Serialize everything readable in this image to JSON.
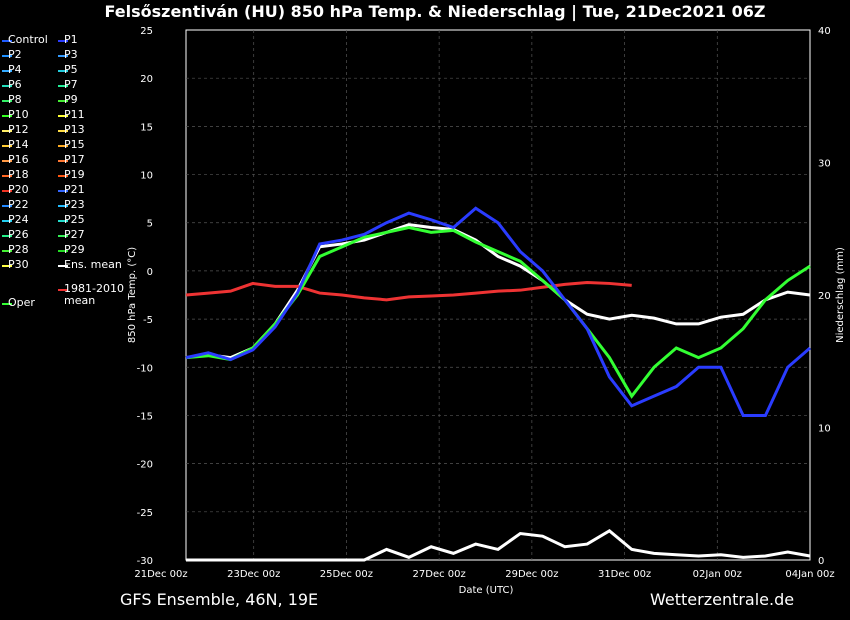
{
  "chart_data": {
    "type": "line",
    "title": "Felsőszentiván  (HU)  850 hPa Temp. & Niederschlag | Tue, 21Dec2021 06Z",
    "xlabel": "Date (UTC)",
    "ylabel": "850 hPa Temp. (°C)",
    "y2label": "Niederschlag (mm)",
    "ylim": [
      -30,
      25
    ],
    "y2lim": [
      0,
      40
    ],
    "yticks": [
      "25",
      "20",
      "15",
      "10",
      "5",
      "0",
      "-5",
      "-10",
      "-15",
      "-20",
      "-25",
      "-30"
    ],
    "y2ticks": [
      "40",
      "30",
      "20",
      "10",
      "0"
    ],
    "xlim_days": [
      "21Dec 00z",
      "04Jan 00z"
    ],
    "xticks": [
      "21Dec 00z",
      "23Dec 00z",
      "25Dec 00z",
      "27Dec 00z",
      "29Dec 00z",
      "31Dec 00z",
      "02Jan 00z",
      "04Jan 00z"
    ],
    "grid": true,
    "legend_position": "left",
    "legend": [
      {
        "label": "Control",
        "color": "#1f5cff"
      },
      {
        "label": "P1",
        "color": "#2a3cff"
      },
      {
        "label": "P2",
        "color": "#1e90ff"
      },
      {
        "label": "P3",
        "color": "#3399ff"
      },
      {
        "label": "P4",
        "color": "#33aaff"
      },
      {
        "label": "P5",
        "color": "#22ccdd"
      },
      {
        "label": "P6",
        "color": "#22ddbb"
      },
      {
        "label": "P7",
        "color": "#22ee99"
      },
      {
        "label": "P8",
        "color": "#33ee66"
      },
      {
        "label": "P9",
        "color": "#44ee33"
      },
      {
        "label": "P10",
        "color": "#33ff22"
      },
      {
        "label": "P11",
        "color": "#ffff33"
      },
      {
        "label": "P12",
        "color": "#ffee66"
      },
      {
        "label": "P13",
        "color": "#ffdd44"
      },
      {
        "label": "P14",
        "color": "#ffcc33"
      },
      {
        "label": "P15",
        "color": "#ffaa22"
      },
      {
        "label": "P16",
        "color": "#ff9944"
      },
      {
        "label": "P17",
        "color": "#ff7733"
      },
      {
        "label": "P18",
        "color": "#ff6622"
      },
      {
        "label": "P19",
        "color": "#ff5511"
      },
      {
        "label": "P20",
        "color": "#ee3322"
      },
      {
        "label": "P21",
        "color": "#3366ff"
      },
      {
        "label": "P22",
        "color": "#2288ff"
      },
      {
        "label": "P23",
        "color": "#22bbff"
      },
      {
        "label": "P24",
        "color": "#22ccee"
      },
      {
        "label": "P25",
        "color": "#22ddcc"
      },
      {
        "label": "P26",
        "color": "#22ee88"
      },
      {
        "label": "P27",
        "color": "#33ee55"
      },
      {
        "label": "P28",
        "color": "#44ee33"
      },
      {
        "label": "P29",
        "color": "#22dd22"
      },
      {
        "label": "P30",
        "color": "#ffff44"
      },
      {
        "label": "Ens. mean",
        "color": "#ffffff"
      },
      {
        "label": "1981-2010\nmean",
        "color": "#ee3333"
      },
      {
        "label": "Oper",
        "color": "#33ff33"
      }
    ],
    "series": [
      {
        "name": "Ens. mean",
        "color": "#ffffff",
        "x": [
          0,
          0.5,
          1,
          1.5,
          2,
          2.5,
          3,
          3.5,
          4,
          4.5,
          5,
          5.5,
          6,
          6.5,
          7,
          7.5,
          8,
          8.5,
          9,
          9.5,
          10,
          10.5,
          11,
          11.5,
          12,
          12.5,
          13,
          13.5,
          14
        ],
        "y": [
          -9,
          -8.7,
          -9,
          -8,
          -5.5,
          -2,
          2.5,
          2.8,
          3.2,
          4,
          4.8,
          4.5,
          4.3,
          3.2,
          1.5,
          0.5,
          -1,
          -3,
          -4.5,
          -5,
          -4.6,
          -4.9,
          -5.5,
          -5.5,
          -4.8,
          -4.5,
          -3,
          -2.2,
          -2.5
        ]
      },
      {
        "name": "1981-2010\nmean",
        "color": "#ee3333",
        "x": [
          0,
          0.5,
          1,
          1.5,
          2,
          2.5,
          3,
          3.5,
          4,
          4.5,
          5,
          5.5,
          6,
          6.5,
          7,
          7.5,
          8,
          8.5,
          9,
          9.5,
          10
        ],
        "y": [
          -2.5,
          -2.3,
          -2.1,
          -1.3,
          -1.6,
          -1.6,
          -2.3,
          -2.5,
          -2.8,
          -3,
          -2.7,
          -2.6,
          -2.5,
          -2.3,
          -2.1,
          -2,
          -1.7,
          -1.4,
          -1.2,
          -1.3,
          -1.5
        ]
      },
      {
        "name": "Oper",
        "color": "#33ff33",
        "x": [
          0,
          0.5,
          1,
          1.5,
          2,
          2.5,
          3,
          3.5,
          4,
          4.5,
          5,
          5.5,
          6,
          6.5,
          7,
          7.5,
          8,
          8.5,
          9,
          9.5,
          10,
          10.5,
          11,
          11.5,
          12,
          12.5,
          13,
          13.5,
          14
        ],
        "y": [
          -9,
          -8.8,
          -9.2,
          -8,
          -5.5,
          -2.5,
          1.5,
          2.5,
          3.5,
          4,
          4.5,
          4,
          4.2,
          3,
          2,
          1,
          -1,
          -3,
          -6,
          -9,
          -13,
          -10,
          -8,
          -9,
          -8,
          -6,
          -3,
          -1,
          0.5
        ]
      },
      {
        "name": "P1",
        "color": "#2a3cff",
        "x": [
          0,
          0.5,
          1,
          1.5,
          2,
          2.5,
          3,
          3.5,
          4,
          4.5,
          5,
          5.5,
          6,
          6.5,
          7,
          7.5,
          8,
          8.5,
          9,
          9.5,
          10,
          10.5,
          11,
          11.5,
          12,
          12.5,
          13,
          13.5,
          14
        ],
        "y": [
          -9,
          -8.5,
          -9.2,
          -8.2,
          -5.8,
          -2.3,
          2.8,
          3.2,
          3.8,
          5,
          6,
          5.3,
          4.5,
          6.5,
          5,
          2,
          0,
          -3,
          -6,
          -11,
          -14,
          -13,
          -12,
          -10,
          -10,
          -15,
          -15,
          -10,
          -8
        ]
      }
    ],
    "precip_series": [
      {
        "name": "Ens. mean",
        "color": "#ffffff",
        "x": [
          0,
          4,
          4.5,
          5,
          5.5,
          6,
          6.5,
          7,
          7.5,
          8,
          8.5,
          9,
          9.5,
          10,
          10.5,
          11,
          11.5,
          12,
          12.5,
          13,
          13.5,
          14
        ],
        "y": [
          0,
          0,
          0.8,
          0.2,
          1,
          0.5,
          1.2,
          0.8,
          2,
          1.8,
          1,
          1.2,
          2.2,
          0.8,
          0.5,
          0.4,
          0.3,
          0.4,
          0.2,
          0.3,
          0.6,
          0.3
        ]
      }
    ]
  },
  "footer": {
    "left": "GFS Ensemble, 46N, 19E",
    "right": "Wetterzentrale.de"
  }
}
